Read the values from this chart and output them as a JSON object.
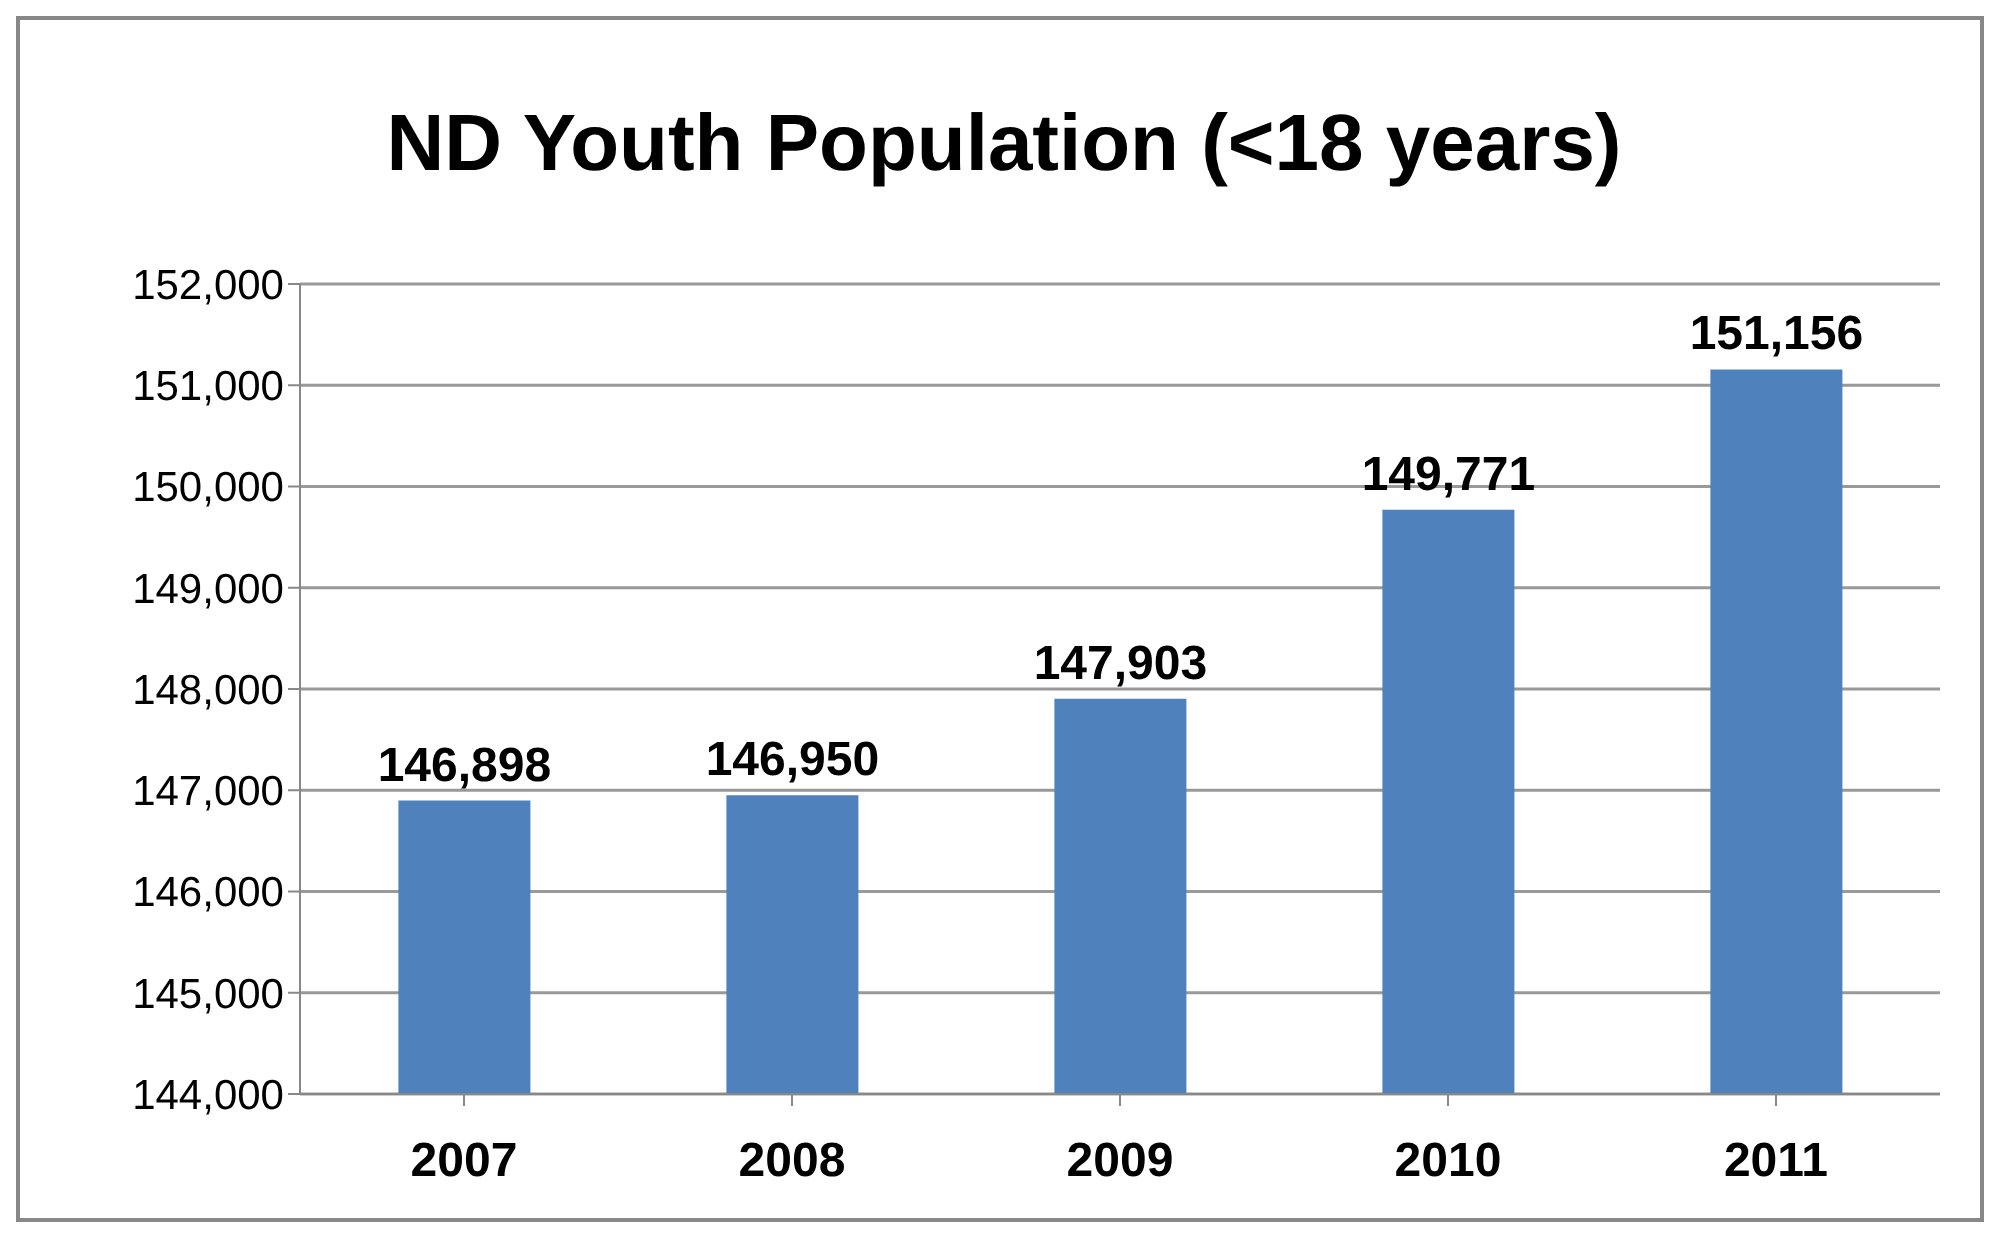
{
  "chart_data": {
    "type": "bar",
    "title": "ND Youth Population (<18 years)",
    "categories": [
      "2007",
      "2008",
      "2009",
      "2010",
      "2011"
    ],
    "values": [
      146898,
      146950,
      147903,
      149771,
      151156
    ],
    "value_labels": [
      "146,898",
      "146,950",
      "147,903",
      "149,771",
      "151,156"
    ],
    "color": "#4f81bd",
    "ylim": [
      144000,
      152000
    ],
    "yticks": [
      {
        "value": 144000,
        "label": "144,000"
      },
      {
        "value": 145000,
        "label": "145,000"
      },
      {
        "value": 146000,
        "label": "146,000"
      },
      {
        "value": 147000,
        "label": "147,000"
      },
      {
        "value": 148000,
        "label": "148,000"
      },
      {
        "value": 149000,
        "label": "149,000"
      },
      {
        "value": 150000,
        "label": "150,000"
      },
      {
        "value": 151000,
        "label": "151,000"
      },
      {
        "value": 152000,
        "label": "152,000"
      }
    ],
    "grid": "y"
  }
}
